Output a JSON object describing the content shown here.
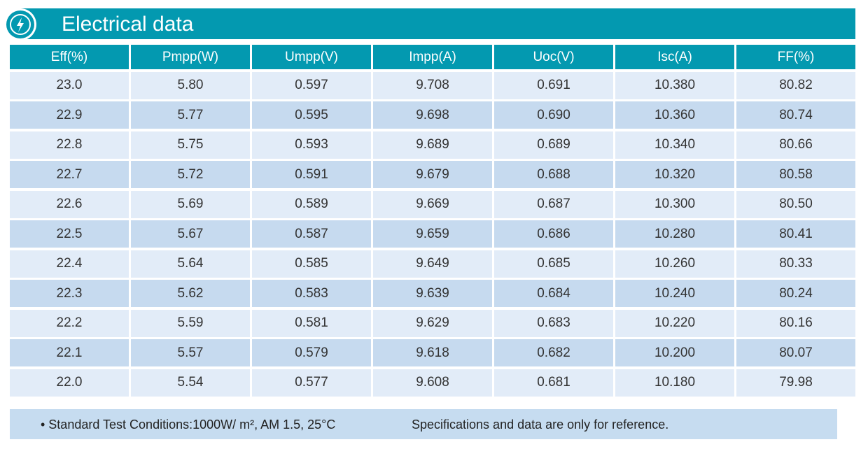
{
  "header": {
    "title": "Electrical data"
  },
  "table": {
    "columns": [
      "Eff(%)",
      "Pmpp(W)",
      "Umpp(V)",
      "Impp(A)",
      "Uoc(V)",
      "Isc(A)",
      "FF(%)"
    ],
    "rows": [
      [
        "23.0",
        "5.80",
        "0.597",
        "9.708",
        "0.691",
        "10.380",
        "80.82"
      ],
      [
        "22.9",
        "5.77",
        "0.595",
        "9.698",
        "0.690",
        "10.360",
        "80.74"
      ],
      [
        "22.8",
        "5.75",
        "0.593",
        "9.689",
        "0.689",
        "10.340",
        "80.66"
      ],
      [
        "22.7",
        "5.72",
        "0.591",
        "9.679",
        "0.688",
        "10.320",
        "80.58"
      ],
      [
        "22.6",
        "5.69",
        "0.589",
        "9.669",
        "0.687",
        "10.300",
        "80.50"
      ],
      [
        "22.5",
        "5.67",
        "0.587",
        "9.659",
        "0.686",
        "10.280",
        "80.41"
      ],
      [
        "22.4",
        "5.64",
        "0.585",
        "9.649",
        "0.685",
        "10.260",
        "80.33"
      ],
      [
        "22.3",
        "5.62",
        "0.583",
        "9.639",
        "0.684",
        "10.240",
        "80.24"
      ],
      [
        "22.2",
        "5.59",
        "0.581",
        "9.629",
        "0.683",
        "10.220",
        "80.16"
      ],
      [
        "22.1",
        "5.57",
        "0.579",
        "9.618",
        "0.682",
        "10.200",
        "80.07"
      ],
      [
        "22.0",
        "5.54",
        "0.577",
        "9.608",
        "0.681",
        "10.180",
        "79.98"
      ]
    ]
  },
  "footer": {
    "conditions": "• Standard Test Conditions:1000W/ m², AM 1.5, 25°C",
    "note": "Specifications and data are only for reference."
  }
}
